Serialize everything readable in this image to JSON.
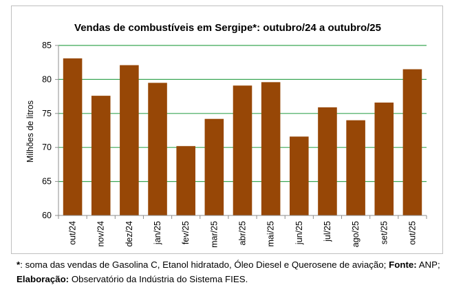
{
  "chart_data": {
    "type": "bar",
    "title": "Vendas de combustíveis em Sergipe*: outubro/24 a outubro/25",
    "ylabel": "Milhões de litros",
    "xlabel": "",
    "ylim": [
      60,
      85
    ],
    "yticks": [
      60,
      65,
      70,
      75,
      80,
      85
    ],
    "grid": true,
    "bar_color": "#974706",
    "grid_color": "#3aa655",
    "categories": [
      "out/24",
      "nov/24",
      "dez/24",
      "jan/25",
      "fev/25",
      "mar/25",
      "abr/25",
      "mai/25",
      "jun/25",
      "jul/25",
      "ago/25",
      "set/25",
      "out/25"
    ],
    "values": [
      83.1,
      77.6,
      82.1,
      79.5,
      70.2,
      74.2,
      79.1,
      79.6,
      71.6,
      75.9,
      74.0,
      76.6,
      81.5
    ]
  },
  "footnote": {
    "line1_marker": "*",
    "line1_text": ": soma das vendas de Gasolina C, Etanol hidratado, Óleo Diesel e Querosene de aviação;",
    "source_label": "Fonte:",
    "source_value": "ANP;",
    "line2_label": "Elaboração:",
    "line2_text": "Observatório da Indústria do Sistema FIES."
  }
}
